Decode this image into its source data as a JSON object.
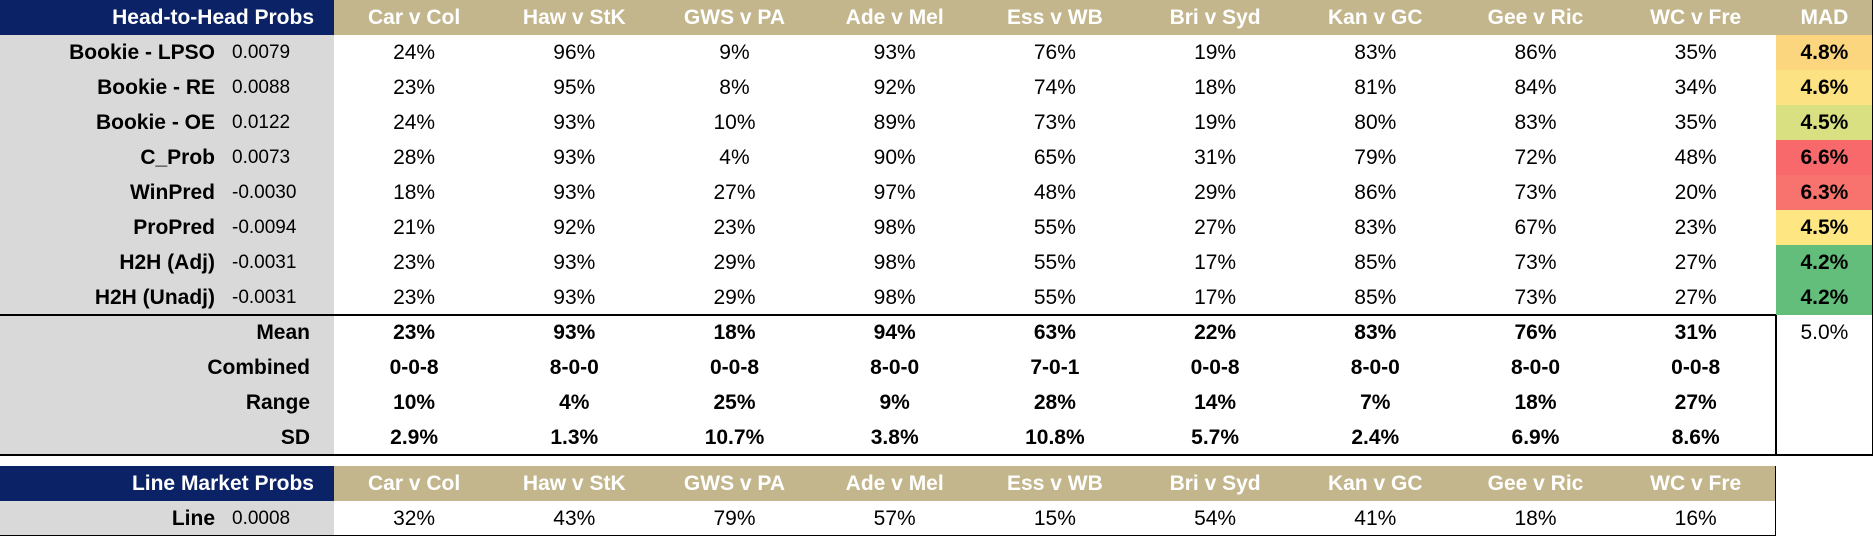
{
  "h2h": {
    "title": "Head-to-Head Probs",
    "matches": [
      "Car v Col",
      "Haw v StK",
      "GWS v PA",
      "Ade v Mel",
      "Ess v WB",
      "Bri v Syd",
      "Kan v GC",
      "Gee v Ric",
      "WC v Fre"
    ],
    "mad_header": "MAD",
    "rows": [
      {
        "name": "Bookie - LPSO",
        "score": "0.0079",
        "values": [
          "24%",
          "96%",
          "9%",
          "93%",
          "76%",
          "19%",
          "83%",
          "86%",
          "35%"
        ],
        "mad": "4.8%",
        "mad_color": "#fcd67f"
      },
      {
        "name": "Bookie - RE",
        "score": "0.0088",
        "values": [
          "23%",
          "95%",
          "8%",
          "92%",
          "74%",
          "18%",
          "81%",
          "84%",
          "34%"
        ],
        "mad": "4.6%",
        "mad_color": "#fde283"
      },
      {
        "name": "Bookie - OE",
        "score": "0.0122",
        "values": [
          "24%",
          "93%",
          "10%",
          "89%",
          "73%",
          "19%",
          "80%",
          "83%",
          "35%"
        ],
        "mad": "4.5%",
        "mad_color": "#d9e082"
      },
      {
        "name": "C_Prob",
        "score": "0.0073",
        "values": [
          "28%",
          "93%",
          "4%",
          "90%",
          "65%",
          "31%",
          "79%",
          "72%",
          "48%"
        ],
        "mad": "6.6%",
        "mad_color": "#f8696b"
      },
      {
        "name": "WinPred",
        "score": "-0.0030",
        "values": [
          "18%",
          "93%",
          "27%",
          "97%",
          "48%",
          "29%",
          "86%",
          "73%",
          "20%"
        ],
        "mad": "6.3%",
        "mad_color": "#f8736d"
      },
      {
        "name": "ProPred",
        "score": "-0.0094",
        "values": [
          "21%",
          "92%",
          "23%",
          "98%",
          "55%",
          "27%",
          "83%",
          "67%",
          "23%"
        ],
        "mad": "4.5%",
        "mad_color": "#fee783"
      },
      {
        "name": "H2H (Adj)",
        "score": "-0.0031",
        "values": [
          "23%",
          "93%",
          "29%",
          "98%",
          "55%",
          "17%",
          "85%",
          "73%",
          "27%"
        ],
        "mad": "4.2%",
        "mad_color": "#63be7b"
      },
      {
        "name": "H2H (Unadj)",
        "score": "-0.0031",
        "values": [
          "23%",
          "93%",
          "29%",
          "98%",
          "55%",
          "17%",
          "85%",
          "73%",
          "27%"
        ],
        "mad": "4.2%",
        "mad_color": "#63be7b"
      }
    ],
    "summary": [
      {
        "name": "Mean",
        "values": [
          "23%",
          "93%",
          "18%",
          "94%",
          "63%",
          "22%",
          "83%",
          "76%",
          "31%"
        ],
        "mad": "5.0%"
      },
      {
        "name": "Combined",
        "values": [
          "0-0-8",
          "8-0-0",
          "0-0-8",
          "8-0-0",
          "7-0-1",
          "0-0-8",
          "8-0-0",
          "8-0-0",
          "0-0-8"
        ]
      },
      {
        "name": "Range",
        "values": [
          "10%",
          "4%",
          "25%",
          "9%",
          "28%",
          "14%",
          "7%",
          "18%",
          "27%"
        ]
      },
      {
        "name": "SD",
        "values": [
          "2.9%",
          "1.3%",
          "10.7%",
          "3.8%",
          "10.8%",
          "5.7%",
          "2.4%",
          "6.9%",
          "8.6%"
        ]
      }
    ]
  },
  "line": {
    "title": "Line Market Probs",
    "matches": [
      "Car v Col",
      "Haw v StK",
      "GWS v PA",
      "Ade v Mel",
      "Ess v WB",
      "Bri v Syd",
      "Kan v GC",
      "Gee v Ric",
      "WC v Fre"
    ],
    "rows": [
      {
        "name": "Line",
        "score": "0.0008",
        "values": [
          "32%",
          "43%",
          "79%",
          "57%",
          "15%",
          "54%",
          "41%",
          "18%",
          "16%"
        ]
      }
    ]
  }
}
